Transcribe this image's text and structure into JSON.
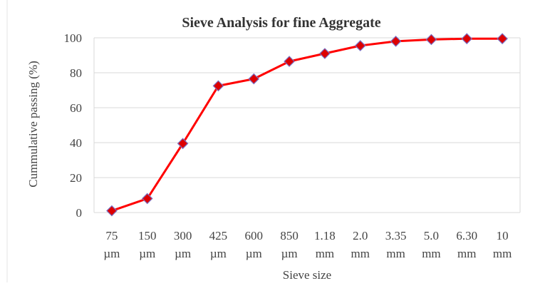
{
  "chart_data": {
    "type": "line",
    "title": "Sieve Analysis for fine Aggregate",
    "xlabel": "Sieve size",
    "ylabel": "Cummulative passing (%)",
    "categories": [
      [
        "75",
        "µm"
      ],
      [
        "150",
        "µm"
      ],
      [
        "300",
        "µm"
      ],
      [
        "425",
        "µm"
      ],
      [
        "600",
        "µm"
      ],
      [
        "850",
        "µm"
      ],
      [
        "1.18",
        "mm"
      ],
      [
        "2.0",
        "mm"
      ],
      [
        "3.35",
        "mm"
      ],
      [
        "5.0",
        "mm"
      ],
      [
        "6.30",
        "mm"
      ],
      [
        "10",
        "mm"
      ]
    ],
    "series": [
      {
        "values": [
          1,
          8,
          39.5,
          72.5,
          76.5,
          86.5,
          91,
          95.5,
          98,
          99,
          99.5,
          99.5
        ],
        "line_color": "#ff0000",
        "marker": "diamond",
        "marker_color": "#dd0000"
      }
    ],
    "ylim": [
      0,
      100
    ],
    "yticks": [
      0,
      20,
      40,
      60,
      80,
      100
    ],
    "grid": true,
    "legend": "none"
  }
}
